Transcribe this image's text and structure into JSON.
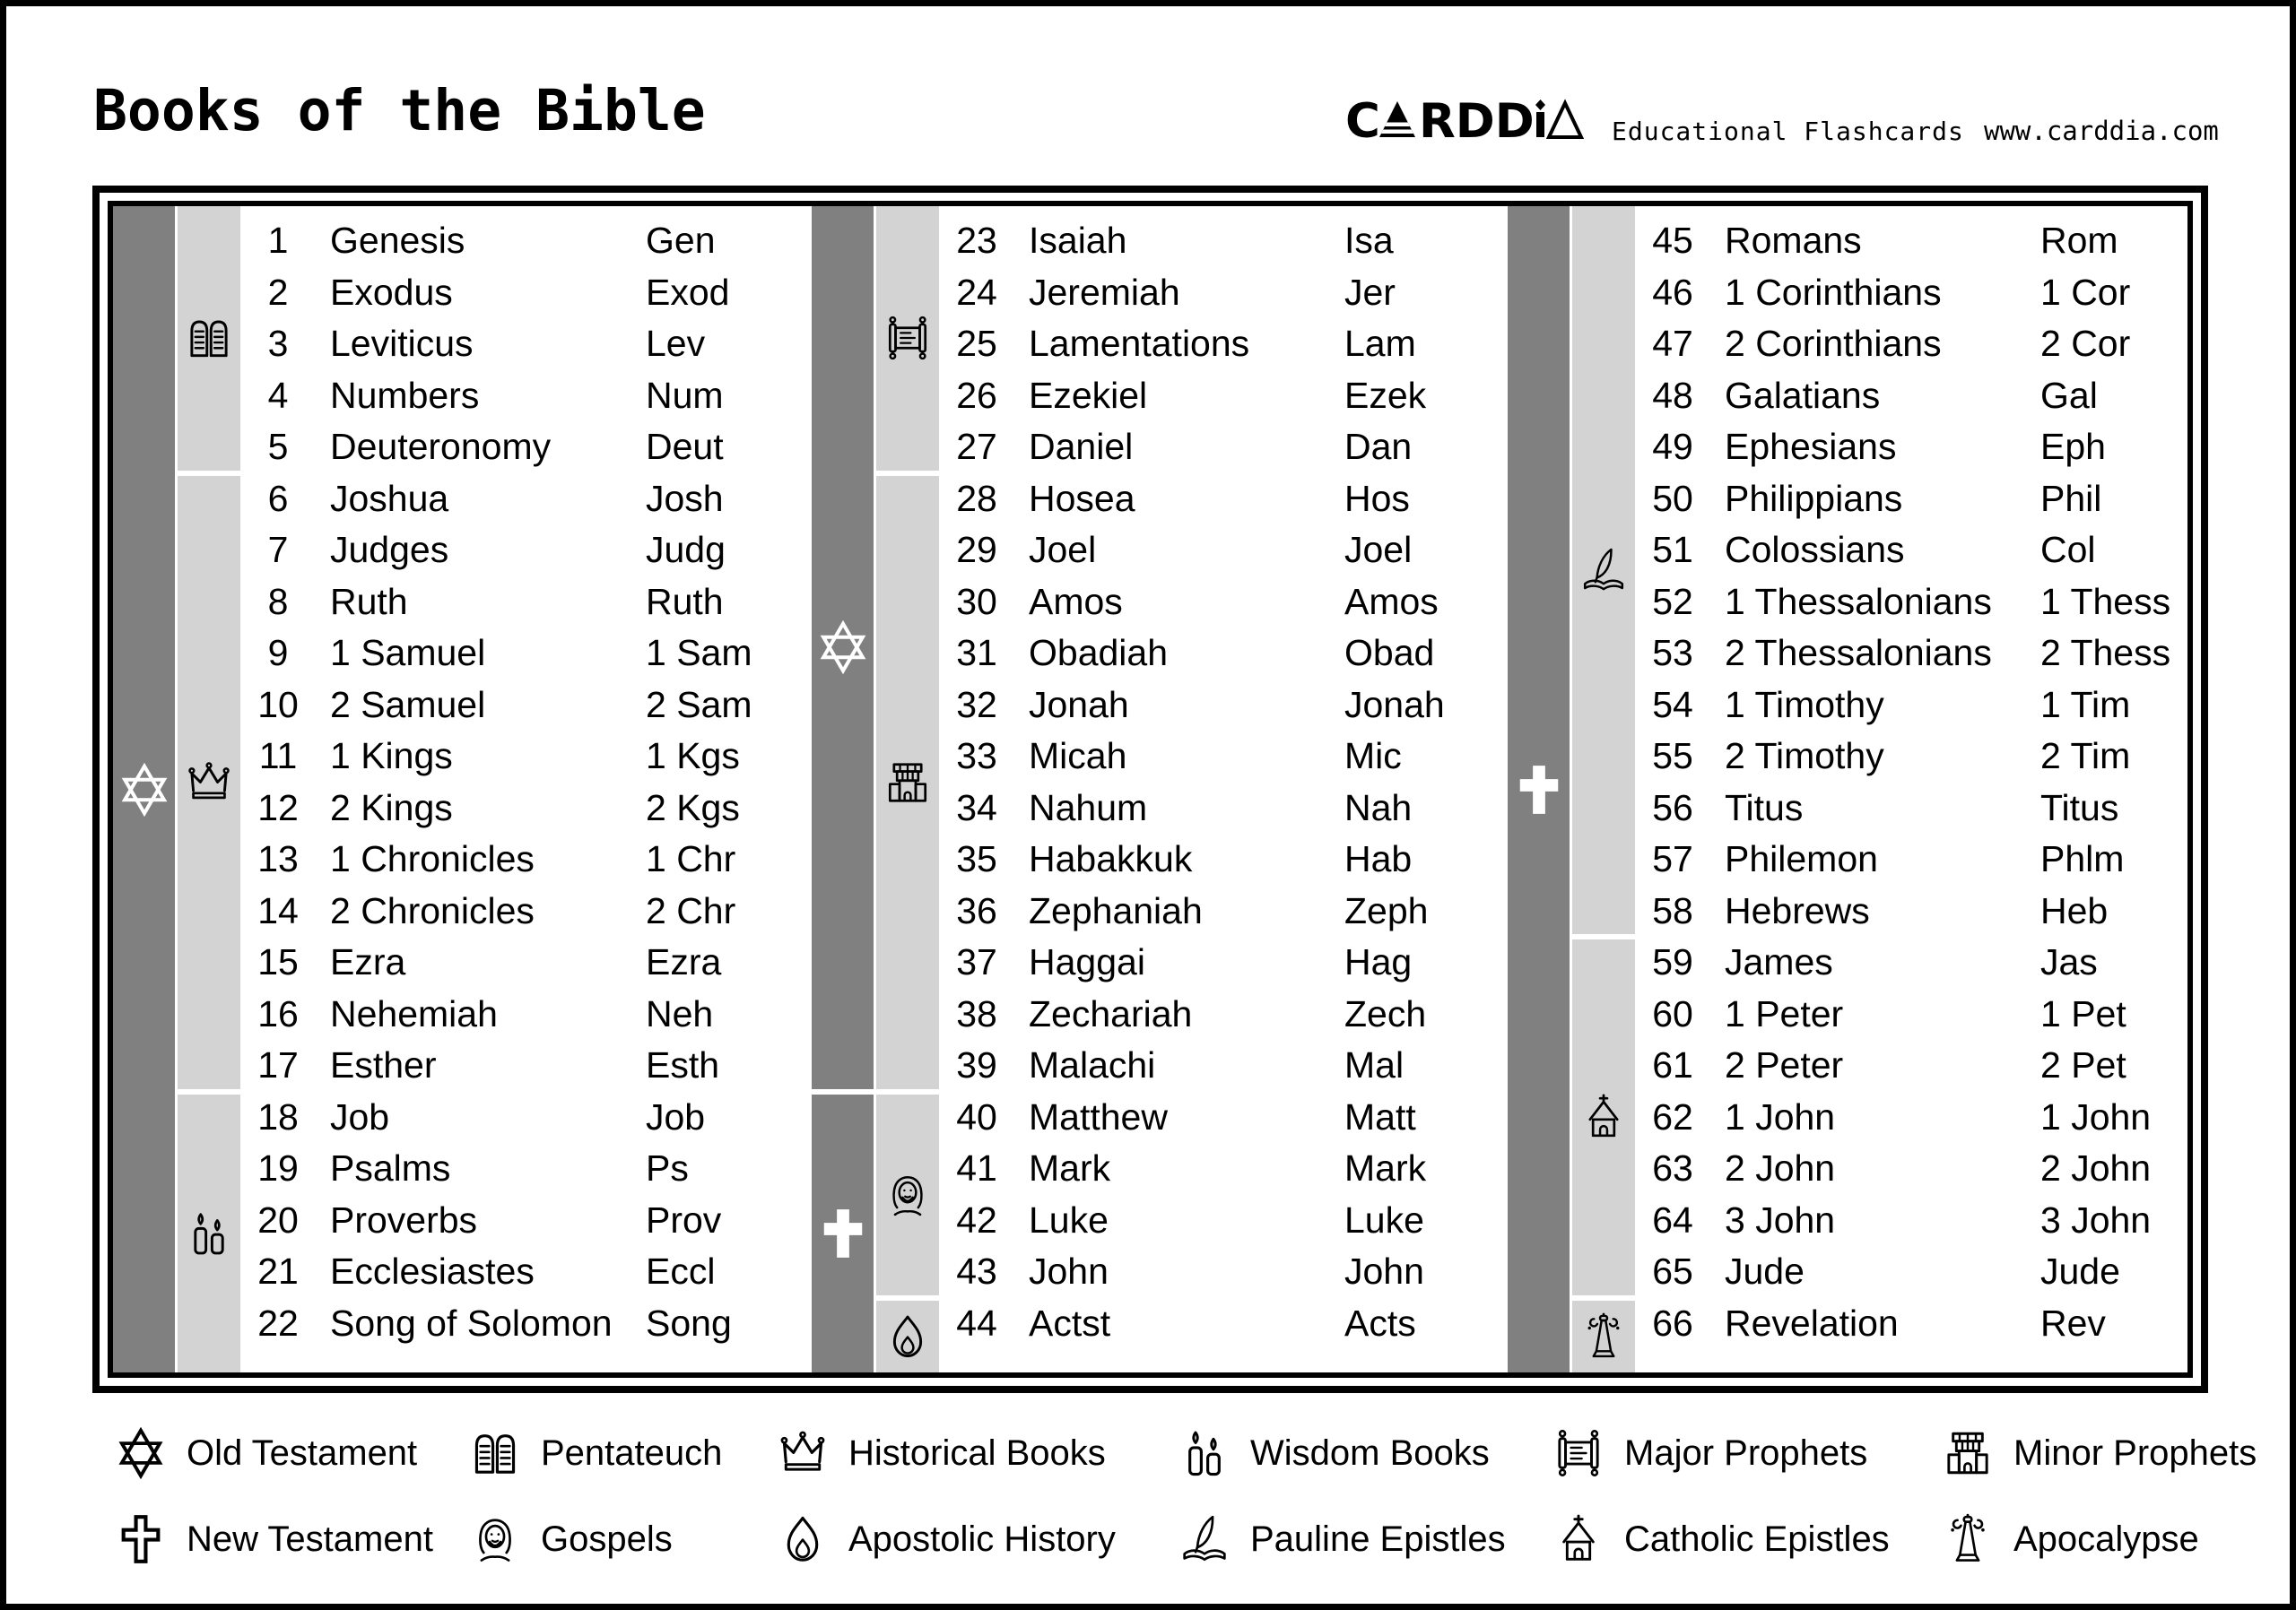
{
  "header": {
    "title": "Books of the Bible",
    "brand": "CARDDIA",
    "tagline": "Educational Flashcards",
    "website": "www.carddia.com"
  },
  "colors": {
    "testament_bar": "#808080",
    "category_bar": "#d3d3d3",
    "icon_on_dark": "#ffffff",
    "text": "#000000",
    "background": "#ffffff"
  },
  "table": {
    "columns": [
      {
        "testament_segments": [
          {
            "icon": "star-of-david-icon",
            "label": "Old Testament",
            "from_row": 1,
            "to_row": 22
          }
        ],
        "category_segments": [
          {
            "icon": "tablets-icon",
            "label": "Pentateuch",
            "from_row": 1,
            "to_row": 5
          },
          {
            "icon": "crown-icon",
            "label": "Historical Books",
            "from_row": 6,
            "to_row": 17
          },
          {
            "icon": "candles-icon",
            "label": "Wisdom Books",
            "from_row": 18,
            "to_row": 22
          }
        ],
        "books": [
          {
            "num": "1",
            "name": "Genesis",
            "abbr": "Gen"
          },
          {
            "num": "2",
            "name": "Exodus",
            "abbr": "Exod"
          },
          {
            "num": "3",
            "name": "Leviticus",
            "abbr": "Lev"
          },
          {
            "num": "4",
            "name": "Numbers",
            "abbr": "Num"
          },
          {
            "num": "5",
            "name": "Deuteronomy",
            "abbr": "Deut"
          },
          {
            "num": "6",
            "name": "Joshua",
            "abbr": "Josh"
          },
          {
            "num": "7",
            "name": "Judges",
            "abbr": "Judg"
          },
          {
            "num": "8",
            "name": "Ruth",
            "abbr": "Ruth"
          },
          {
            "num": "9",
            "name": "1 Samuel",
            "abbr": "1 Sam"
          },
          {
            "num": "10",
            "name": "2 Samuel",
            "abbr": "2 Sam"
          },
          {
            "num": "11",
            "name": "1 Kings",
            "abbr": "1 Kgs"
          },
          {
            "num": "12",
            "name": "2 Kings",
            "abbr": "2 Kgs"
          },
          {
            "num": "13",
            "name": "1 Chronicles",
            "abbr": "1 Chr"
          },
          {
            "num": "14",
            "name": "2 Chronicles",
            "abbr": "2 Chr"
          },
          {
            "num": "15",
            "name": "Ezra",
            "abbr": "Ezra"
          },
          {
            "num": "16",
            "name": "Nehemiah",
            "abbr": "Neh"
          },
          {
            "num": "17",
            "name": "Esther",
            "abbr": "Esth"
          },
          {
            "num": "18",
            "name": "Job",
            "abbr": "Job"
          },
          {
            "num": "19",
            "name": "Psalms",
            "abbr": "Ps"
          },
          {
            "num": "20",
            "name": "Proverbs",
            "abbr": "Prov"
          },
          {
            "num": "21",
            "name": "Ecclesiastes",
            "abbr": "Eccl"
          },
          {
            "num": "22",
            "name": "Song of Solomon",
            "abbr": "Song"
          }
        ]
      },
      {
        "testament_segments": [
          {
            "icon": "star-of-david-icon",
            "label": "Old Testament",
            "from_row": 1,
            "to_row": 17
          },
          {
            "icon": "cross-solid-icon",
            "label": "New Testament",
            "from_row": 18,
            "to_row": 22
          }
        ],
        "category_segments": [
          {
            "icon": "torah-scroll-icon",
            "label": "Major Prophets",
            "from_row": 1,
            "to_row": 5
          },
          {
            "icon": "temple-icon",
            "label": "Minor Prophets",
            "from_row": 6,
            "to_row": 17
          },
          {
            "icon": "jesus-icon",
            "label": "Gospels",
            "from_row": 18,
            "to_row": 21
          },
          {
            "icon": "flame-icon",
            "label": "Apostolic History",
            "from_row": 22,
            "to_row": 22
          }
        ],
        "books": [
          {
            "num": "23",
            "name": "Isaiah",
            "abbr": "Isa"
          },
          {
            "num": "24",
            "name": "Jeremiah",
            "abbr": "Jer"
          },
          {
            "num": "25",
            "name": "Lamentations",
            "abbr": "Lam"
          },
          {
            "num": "26",
            "name": "Ezekiel",
            "abbr": "Ezek"
          },
          {
            "num": "27",
            "name": "Daniel",
            "abbr": "Dan"
          },
          {
            "num": "28",
            "name": "Hosea",
            "abbr": "Hos"
          },
          {
            "num": "29",
            "name": "Joel",
            "abbr": "Joel"
          },
          {
            "num": "30",
            "name": "Amos",
            "abbr": "Amos"
          },
          {
            "num": "31",
            "name": "Obadiah",
            "abbr": "Obad"
          },
          {
            "num": "32",
            "name": "Jonah",
            "abbr": "Jonah"
          },
          {
            "num": "33",
            "name": "Micah",
            "abbr": "Mic"
          },
          {
            "num": "34",
            "name": "Nahum",
            "abbr": "Nah"
          },
          {
            "num": "35",
            "name": "Habakkuk",
            "abbr": "Hab"
          },
          {
            "num": "36",
            "name": "Zephaniah",
            "abbr": "Zeph"
          },
          {
            "num": "37",
            "name": "Haggai",
            "abbr": "Hag"
          },
          {
            "num": "38",
            "name": "Zechariah",
            "abbr": "Zech"
          },
          {
            "num": "39",
            "name": "Malachi",
            "abbr": "Mal"
          },
          {
            "num": "40",
            "name": "Matthew",
            "abbr": "Matt"
          },
          {
            "num": "41",
            "name": "Mark",
            "abbr": "Mark"
          },
          {
            "num": "42",
            "name": "Luke",
            "abbr": "Luke"
          },
          {
            "num": "43",
            "name": "John",
            "abbr": "John"
          },
          {
            "num": "44",
            "name": "Actst",
            "abbr": "Acts"
          }
        ]
      },
      {
        "testament_segments": [
          {
            "icon": "cross-solid-icon",
            "label": "New Testament",
            "from_row": 1,
            "to_row": 22
          }
        ],
        "category_segments": [
          {
            "icon": "quill-book-icon",
            "label": "Pauline Epistles",
            "from_row": 1,
            "to_row": 14
          },
          {
            "icon": "church-icon",
            "label": "Catholic Epistles",
            "from_row": 15,
            "to_row": 21
          },
          {
            "icon": "apocalypse-trumpet-icon",
            "label": "Apocalypse",
            "from_row": 22,
            "to_row": 22
          }
        ],
        "books": [
          {
            "num": "45",
            "name": "Romans",
            "abbr": "Rom"
          },
          {
            "num": "46",
            "name": "1 Corinthians",
            "abbr": "1 Cor"
          },
          {
            "num": "47",
            "name": "2 Corinthians",
            "abbr": "2 Cor"
          },
          {
            "num": "48",
            "name": "Galatians",
            "abbr": "Gal"
          },
          {
            "num": "49",
            "name": "Ephesians",
            "abbr": "Eph"
          },
          {
            "num": "50",
            "name": "Philippians",
            "abbr": "Phil"
          },
          {
            "num": "51",
            "name": "Colossians",
            "abbr": "Col"
          },
          {
            "num": "52",
            "name": "1 Thessalonians",
            "abbr": "1 Thess"
          },
          {
            "num": "53",
            "name": "2 Thessalonians",
            "abbr": "2 Thess"
          },
          {
            "num": "54",
            "name": "1 Timothy",
            "abbr": "1 Tim"
          },
          {
            "num": "55",
            "name": "2 Timothy",
            "abbr": "2 Tim"
          },
          {
            "num": "56",
            "name": "Titus",
            "abbr": "Titus"
          },
          {
            "num": "57",
            "name": "Philemon",
            "abbr": "Phlm"
          },
          {
            "num": "58",
            "name": "Hebrews",
            "abbr": "Heb"
          },
          {
            "num": "59",
            "name": "James",
            "abbr": "Jas"
          },
          {
            "num": "60",
            "name": "1 Peter",
            "abbr": "1 Pet"
          },
          {
            "num": "61",
            "name": "2 Peter",
            "abbr": "2 Pet"
          },
          {
            "num": "62",
            "name": "1 John",
            "abbr": "1 John"
          },
          {
            "num": "63",
            "name": "2 John",
            "abbr": "2 John"
          },
          {
            "num": "64",
            "name": "3 John",
            "abbr": "3 John"
          },
          {
            "num": "65",
            "name": "Jude",
            "abbr": "Jude"
          },
          {
            "num": "66",
            "name": "Revelation",
            "abbr": "Rev"
          }
        ]
      }
    ]
  },
  "legend": {
    "rows": [
      [
        {
          "icon": "star-of-david-icon",
          "label": "Old Testament"
        },
        {
          "icon": "tablets-icon",
          "label": "Pentateuch"
        },
        {
          "icon": "crown-icon",
          "label": "Historical Books"
        },
        {
          "icon": "candles-icon",
          "label": "Wisdom Books"
        },
        {
          "icon": "torah-scroll-icon",
          "label": "Major Prophets"
        },
        {
          "icon": "temple-icon",
          "label": "Minor Prophets"
        }
      ],
      [
        {
          "icon": "cross-icon",
          "label": "New Testament"
        },
        {
          "icon": "jesus-icon",
          "label": "Gospels"
        },
        {
          "icon": "flame-icon",
          "label": "Apostolic History"
        },
        {
          "icon": "quill-book-icon",
          "label": "Pauline Epistles"
        },
        {
          "icon": "church-icon",
          "label": "Catholic Epistles"
        },
        {
          "icon": "apocalypse-trumpet-icon",
          "label": "Apocalypse"
        }
      ]
    ]
  }
}
